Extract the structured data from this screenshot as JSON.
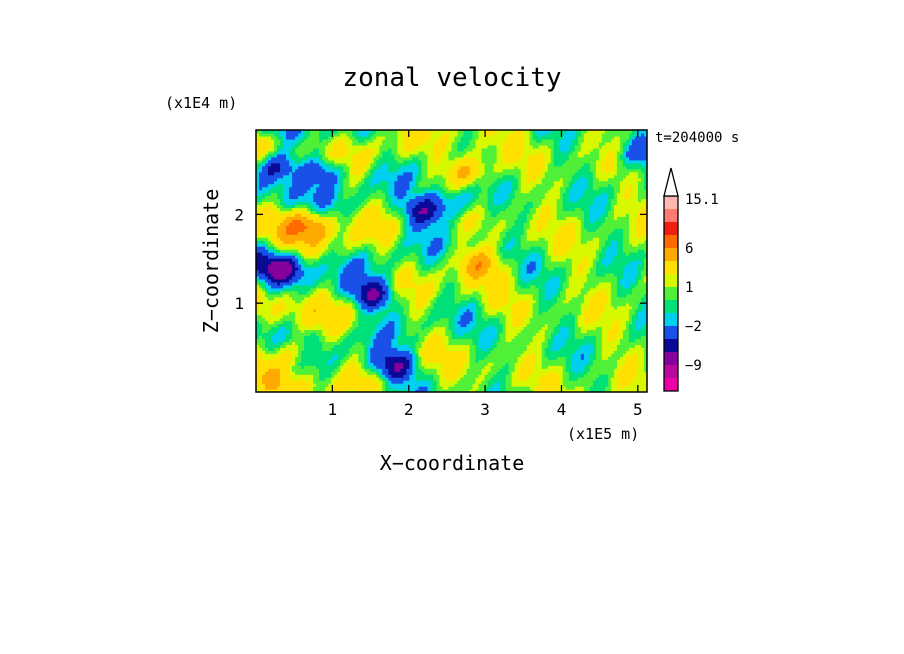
{
  "chart_data": {
    "type": "heatmap",
    "title": "zonal velocity",
    "xlabel": "X−coordinate",
    "ylabel": "Z−coordinate",
    "x_unit": "(x1E5 m)",
    "y_unit": "(x1E4 m)",
    "time_label": "t=204000 s",
    "xlim": [
      0,
      5.12
    ],
    "ylim": [
      0,
      2.95
    ],
    "xticks": [
      1,
      2,
      3,
      4,
      5
    ],
    "yticks": [
      1,
      2
    ],
    "xtick_labels": [
      "1",
      "2",
      "3",
      "4",
      "5"
    ],
    "ytick_labels": [
      "1",
      "2"
    ],
    "grid": false,
    "colorbar": {
      "levels": [
        -15,
        -12,
        -9,
        -6,
        -4,
        -2,
        -1,
        0,
        1,
        2,
        4,
        6,
        9,
        12,
        15.1
      ],
      "colors": [
        "#ee00a8",
        "#b8089e",
        "#86009c",
        "#0a0a96",
        "#1850e8",
        "#00d0f0",
        "#00e078",
        "#50f038",
        "#d8f800",
        "#ffe000",
        "#ffaa00",
        "#ff6a00",
        "#f02010",
        "#ff7a70",
        "#ffb8b0"
      ],
      "labeled_levels": [
        {
          "value": 15.1,
          "text": "15.1"
        },
        {
          "value": 6,
          "text": "6"
        },
        {
          "value": 1,
          "text": "1"
        },
        {
          "value": -2,
          "text": "−2"
        },
        {
          "value": -9,
          "text": "−9"
        }
      ],
      "extend": "max"
    },
    "field_features": [
      {
        "x": 0.25,
        "z": 2.55,
        "value": -6
      },
      {
        "x": 0.9,
        "z": 2.5,
        "value": -5
      },
      {
        "x": 2.2,
        "z": 2.05,
        "value": -6
      },
      {
        "x": 2.6,
        "z": 2.15,
        "value": -4
      },
      {
        "x": 0.35,
        "z": 1.4,
        "value": -6
      },
      {
        "x": 1.55,
        "z": 1.1,
        "value": -7
      },
      {
        "x": 1.8,
        "z": 0.3,
        "value": -7
      },
      {
        "x": 5.0,
        "z": 2.7,
        "value": -4
      },
      {
        "x": 0.7,
        "z": 1.9,
        "value": 5
      },
      {
        "x": 2.8,
        "z": 2.5,
        "value": 5
      },
      {
        "x": 2.9,
        "z": 1.45,
        "value": 4
      },
      {
        "x": 0.5,
        "z": 0.45,
        "value": 4
      }
    ]
  }
}
